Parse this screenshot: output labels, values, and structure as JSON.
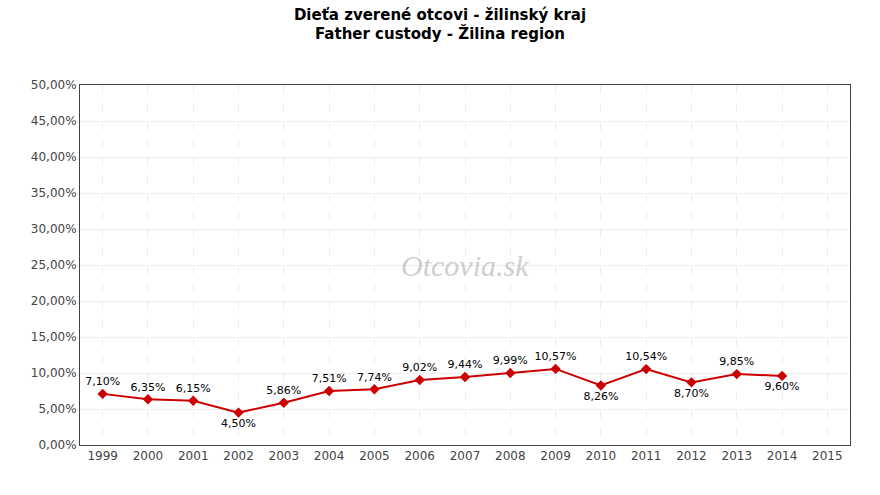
{
  "chart_data": {
    "type": "line",
    "title": "Dieťa zverené otcovi - žilinský kraj",
    "subtitle": "Father custody - Žilina region",
    "annotations": [
      "Otcovia.sk"
    ],
    "x": [
      1999,
      2000,
      2001,
      2002,
      2003,
      2004,
      2005,
      2006,
      2007,
      2008,
      2009,
      2010,
      2011,
      2012,
      2013,
      2014,
      2015
    ],
    "values": [
      7.1,
      6.35,
      6.15,
      4.5,
      5.86,
      7.51,
      7.74,
      9.02,
      9.44,
      9.99,
      10.57,
      8.26,
      10.54,
      8.7,
      9.85,
      9.6,
      null
    ],
    "value_labels": [
      "7,10%",
      "6,35%",
      "6,15%",
      "4,50%",
      "5,86%",
      "7,51%",
      "7,74%",
      "9,02%",
      "9,44%",
      "9,99%",
      "10,57%",
      "8,26%",
      "10,54%",
      "8,70%",
      "9,85%",
      "9,60%",
      null
    ],
    "color": "#cc0000",
    "marker": "diamond",
    "data_labels": true,
    "grid": true,
    "xlim": [
      1998.5,
      2015.5
    ],
    "xticks": [
      1999,
      2000,
      2001,
      2002,
      2003,
      2004,
      2005,
      2006,
      2007,
      2008,
      2009,
      2010,
      2011,
      2012,
      2013,
      2014,
      2015
    ],
    "ylim": [
      0,
      50
    ],
    "yticks": [
      {
        "value": 0,
        "label": "0,00%"
      },
      {
        "value": 5,
        "label": "5,00%"
      },
      {
        "value": 10,
        "label": "10,00%"
      },
      {
        "value": 15,
        "label": "15,00%"
      },
      {
        "value": 20,
        "label": "20,00%"
      },
      {
        "value": 25,
        "label": "25,00%"
      },
      {
        "value": 30,
        "label": "30,00%"
      },
      {
        "value": 35,
        "label": "35,00%"
      },
      {
        "value": 40,
        "label": "40,00%"
      },
      {
        "value": 45,
        "label": "45,00%"
      },
      {
        "value": 50,
        "label": "50,00%"
      }
    ]
  }
}
